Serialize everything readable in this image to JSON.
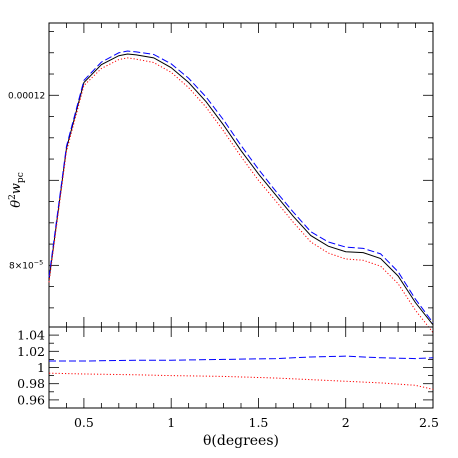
{
  "chart_data": [
    {
      "type": "line",
      "xlabel": "θ(degrees)",
      "ylabel_main": "θ",
      "ylabel_sup": "2",
      "ylabel_w": "w",
      "ylabel_sub": "pc",
      "xlim": [
        0.3,
        2.5
      ],
      "ylim": [
        6.55e-05,
        0.000137
      ],
      "x_ticks": [
        0.5,
        1,
        1.5,
        2,
        2.5
      ],
      "x_tick_labels": [
        "0.5",
        "1",
        "1.5",
        "2",
        "2.5"
      ],
      "y_tick_labels": [
        {
          "value": 0.00012,
          "label": "0.00012",
          "style": "plain"
        },
        {
          "value": 8e-05,
          "mantissa": "8×10",
          "exponent": "−5",
          "style": "sci"
        }
      ],
      "grid": false,
      "series": [
        {
          "style": "solid",
          "color": "#000000",
          "x": [
            0.3,
            0.4,
            0.5,
            0.6,
            0.7,
            0.75,
            0.8,
            0.9,
            1.0,
            1.1,
            1.2,
            1.3,
            1.4,
            1.5,
            1.6,
            1.7,
            1.8,
            1.9,
            2.0,
            2.1,
            2.2,
            2.3,
            2.4,
            2.5
          ],
          "y": [
            7.65e-05,
            0.0001075,
            0.000123,
            0.0001272,
            0.0001293,
            0.0001297,
            0.0001295,
            0.0001288,
            0.0001265,
            0.000123,
            0.0001185,
            0.000113,
            0.000107,
            0.0001015,
            9.65e-05,
            9.15e-05,
            8.7e-05,
            8.45e-05,
            8.32e-05,
            8.3e-05,
            8.16e-05,
            7.75e-05,
            7.12e-05,
            6.6e-05
          ]
        },
        {
          "style": "dashed",
          "color": "#0000ff",
          "x": [
            0.3,
            0.4,
            0.5,
            0.6,
            0.7,
            0.75,
            0.8,
            0.9,
            1.0,
            1.1,
            1.2,
            1.3,
            1.4,
            1.5,
            1.6,
            1.7,
            1.8,
            1.9,
            2.0,
            2.1,
            2.2,
            2.3,
            2.4,
            2.5
          ],
          "y": [
            7.72e-05,
            0.000108,
            0.0001235,
            0.0001278,
            0.00013,
            0.0001304,
            0.0001302,
            0.0001296,
            0.0001274,
            0.000124,
            0.0001196,
            0.0001142,
            0.0001082,
            0.0001026,
            9.74e-05,
            9.25e-05,
            8.79e-05,
            8.55e-05,
            8.43e-05,
            8.4e-05,
            8.27e-05,
            7.85e-05,
            7.2e-05,
            6.65e-05
          ]
        },
        {
          "style": "dotted",
          "color": "#ff0000",
          "x": [
            0.3,
            0.4,
            0.5,
            0.6,
            0.7,
            0.75,
            0.8,
            0.9,
            1.0,
            1.1,
            1.2,
            1.3,
            1.4,
            1.5,
            1.6,
            1.7,
            1.8,
            1.9,
            2.0,
            2.1,
            2.2,
            2.3,
            2.4,
            2.5
          ],
          "y": [
            7.6e-05,
            0.0001068,
            0.0001223,
            0.0001263,
            0.0001284,
            0.0001288,
            0.0001285,
            0.0001277,
            0.0001254,
            0.0001218,
            0.0001172,
            0.0001116,
            0.0001056,
            0.0001,
            9.51e-05,
            9.01e-05,
            8.55e-05,
            8.29e-05,
            8.15e-05,
            8.12e-05,
            7.98e-05,
            7.57e-05,
            6.94e-05,
            6.42e-05
          ]
        }
      ]
    },
    {
      "type": "line",
      "xlim": [
        0.3,
        2.5
      ],
      "ylim": [
        0.95,
        1.05
      ],
      "y_ticks": [
        0.96,
        0.98,
        1.0,
        1.02,
        1.04
      ],
      "y_tick_labels": [
        "0.96",
        "0.98",
        "1",
        "1.02",
        "1.04"
      ],
      "grid": false,
      "series": [
        {
          "style": "dashed",
          "color": "#0000ff",
          "x": [
            0.3,
            0.5,
            0.8,
            1.0,
            1.3,
            1.6,
            1.8,
            2.0,
            2.2,
            2.4,
            2.5
          ],
          "y": [
            1.008,
            1.008,
            1.009,
            1.009,
            1.01,
            1.011,
            1.013,
            1.014,
            1.012,
            1.011,
            1.012
          ]
        },
        {
          "style": "dotted",
          "color": "#ff0000",
          "x": [
            0.3,
            0.5,
            0.8,
            1.0,
            1.3,
            1.6,
            1.8,
            2.0,
            2.2,
            2.4,
            2.5
          ],
          "y": [
            0.993,
            0.992,
            0.991,
            0.99,
            0.989,
            0.987,
            0.985,
            0.983,
            0.981,
            0.978,
            0.973
          ]
        }
      ]
    }
  ]
}
